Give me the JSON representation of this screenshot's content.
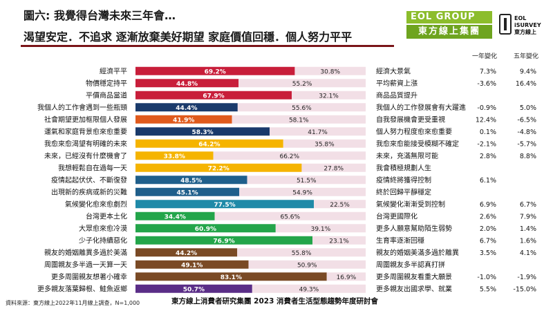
{
  "header": {
    "title": "圖六: 我覺得台灣未來三年會…",
    "subtitle": "渴望安定．不追求  逐漸放棄美好期望  家庭價值回穩．個人努力平平",
    "col_1yr": "一年變化",
    "col_5yr": "五年變化"
  },
  "logos": {
    "eol_top": "EOL GROUP",
    "eol_bottom": "東方線上集團",
    "survey_line1": "EOL",
    "survey_line2": "iSURVEY",
    "survey_line3": "東方線上"
  },
  "footer": {
    "source": "資料來源：東方線上2022年11月線上調查，N=1,000",
    "event": "東方線上消費者研究集團 2023 消費者生活型態趨勢年度研討會"
  },
  "colors": {
    "right_bar": "#f2dfe6",
    "text_on_bar": "#ffffff",
    "text_right": "#222222"
  },
  "chart_data": {
    "type": "bar",
    "orientation": "horizontal-stacked-100",
    "rows": [
      {
        "left": "經濟平平",
        "right": "經濟大景氣",
        "left_pct": 69.2,
        "right_pct": 30.8,
        "change_1yr": "7.3%",
        "change_5yr": "9.4%",
        "color": "#c81e3a"
      },
      {
        "left": "物價穩定持平",
        "right": "平均薪資上漲",
        "left_pct": 44.8,
        "right_pct": 55.2,
        "change_1yr": "-3.6%",
        "change_5yr": "16.4%",
        "color": "#c81e3a"
      },
      {
        "left": "平價商品當道",
        "right": "商品品質提升",
        "left_pct": 67.9,
        "right_pct": 32.1,
        "change_1yr": "",
        "change_5yr": "",
        "color": "#c81e3a"
      },
      {
        "left": "我個人的工作會遇到一些瓶頸",
        "right": "我個人的工作發展會有大躍進",
        "left_pct": 44.4,
        "right_pct": 55.6,
        "change_1yr": "-0.9%",
        "change_5yr": "5.0%",
        "color": "#1a3a6b"
      },
      {
        "left": "社會期望更加框限個人發展",
        "right": "自我發展機會更受重視",
        "left_pct": 41.9,
        "right_pct": 58.1,
        "change_1yr": "12.4%",
        "change_5yr": "-6.5%",
        "color": "#e05a1c"
      },
      {
        "left": "運氣和家庭背景愈來愈重要",
        "right": "個人努力程度愈來愈重要",
        "left_pct": 58.3,
        "right_pct": 41.7,
        "change_1yr": "0.1%",
        "change_5yr": "-4.8%",
        "color": "#1a3a6b"
      },
      {
        "left": "我愈來愈渴望有明確的未來",
        "right": "我愈來愈能接受模糊不確定",
        "left_pct": 64.2,
        "right_pct": 35.8,
        "change_1yr": "-2.1%",
        "change_5yr": "-5.7%",
        "color": "#f5b400"
      },
      {
        "left": "未來，已經沒有什麼機會了",
        "right": "未來，充滿無限可能",
        "left_pct": 33.8,
        "right_pct": 66.2,
        "change_1yr": "2.8%",
        "change_5yr": "8.8%",
        "color": "#f5b400"
      },
      {
        "left": "我想輕鬆自在過每一天",
        "right": "我會積極規劃人生",
        "left_pct": 72.2,
        "right_pct": 27.8,
        "change_1yr": "",
        "change_5yr": "",
        "color": "#f5b400"
      },
      {
        "left": "疫情起起伏伏、不斷復發",
        "right": "疫情終將獲得控制",
        "left_pct": 48.5,
        "right_pct": 51.5,
        "change_1yr": "6.1%",
        "change_5yr": "",
        "color": "#1f5f8b"
      },
      {
        "left": "出現新的疾病或新的災難",
        "right": "終於回歸平靜穩定",
        "left_pct": 45.1,
        "right_pct": 54.9,
        "change_1yr": "",
        "change_5yr": "",
        "color": "#1f5f8b"
      },
      {
        "left": "氣候變化愈來愈劇烈",
        "right": "氣候變化漸漸受到控制",
        "left_pct": 77.5,
        "right_pct": 22.5,
        "change_1yr": "6.9%",
        "change_5yr": "6.7%",
        "color": "#1f8aa8"
      },
      {
        "left": "台灣更本土化",
        "right": "台灣更國際化",
        "left_pct": 34.4,
        "right_pct": 65.6,
        "change_1yr": "2.6%",
        "change_5yr": "7.9%",
        "color": "#23a54a"
      },
      {
        "left": "大眾愈來愈冷漠",
        "right": "更多人願意幫助陌生弱勢",
        "left_pct": 60.9,
        "right_pct": 39.1,
        "change_1yr": "2.0%",
        "change_5yr": "1.4%",
        "color": "#23a54a"
      },
      {
        "left": "少子化持續惡化",
        "right": "生育率逐漸回穩",
        "left_pct": 76.9,
        "right_pct": 23.1,
        "change_1yr": "6.7%",
        "change_5yr": "1.6%",
        "color": "#23a54a"
      },
      {
        "left": "親友的婚姻離異多過於美滿",
        "right": "親友的婚姻美滿多過於離異",
        "left_pct": 44.2,
        "right_pct": 55.8,
        "change_1yr": "3.5%",
        "change_5yr": "4.1%",
        "color": "#7a4a25"
      },
      {
        "left": "周圍親友多半過一天算一天",
        "right": "周圍親友多半認真打拼",
        "left_pct": 49.1,
        "right_pct": 50.9,
        "change_1yr": "",
        "change_5yr": "",
        "color": "#7a4a25"
      },
      {
        "left": "更多周圍親友想著小確幸",
        "right": "更多周圍親友看重大願景",
        "left_pct": 83.1,
        "right_pct": 16.9,
        "change_1yr": "-1.0%",
        "change_5yr": "-1.9%",
        "color": "#7a4a25"
      },
      {
        "left": "更多親友落葉歸根、鮭魚返鄉",
        "right": "更多親友出國求學、就業",
        "left_pct": 50.7,
        "right_pct": 49.3,
        "change_1yr": "5.5%",
        "change_5yr": "-15.0%",
        "color": "#5a2d87"
      }
    ]
  }
}
